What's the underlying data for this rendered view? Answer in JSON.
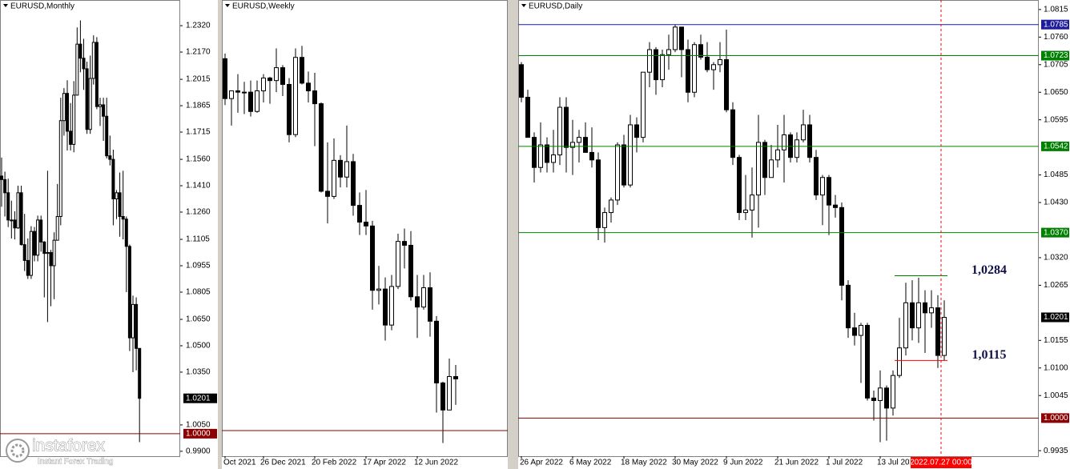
{
  "chart_data": [
    {
      "type": "candlestick",
      "title": "EURUSD,Monthly",
      "categories": [
        null,
        null,
        null,
        null,
        null,
        null,
        null,
        null,
        null,
        null,
        null,
        null,
        null,
        null,
        null,
        null,
        null,
        null,
        null,
        null,
        null,
        null,
        null,
        null,
        null,
        null,
        null,
        null,
        null,
        null,
        null,
        null,
        null,
        null,
        null,
        null,
        null,
        null,
        null,
        null,
        null,
        null,
        null
      ],
      "open": [
        1.1465,
        1.1445,
        1.137,
        1.1215,
        1.1215,
        1.117,
        1.137,
        1.1075,
        1.0985,
        1.09,
        1.115,
        1.1015,
        1.1215,
        1.109,
        1.1025,
        1.103,
        1.0955,
        1.11,
        1.1235,
        1.178,
        1.1935,
        1.172,
        1.1645,
        1.1925,
        1.2215,
        1.2135,
        1.2075,
        1.173,
        1.202,
        1.2225,
        1.186,
        1.187,
        1.1805,
        1.158,
        1.156,
        1.1335,
        1.137,
        1.1235,
        1.122,
        1.1065,
        1.0545,
        1.0735,
        1.0485
      ],
      "high": [
        1.157,
        1.149,
        1.145,
        1.1325,
        1.1265,
        1.141,
        1.141,
        1.125,
        1.111,
        1.118,
        1.1175,
        1.124,
        1.124,
        1.1095,
        1.1495,
        1.1045,
        1.1145,
        1.142,
        1.191,
        1.1965,
        1.201,
        1.188,
        1.2005,
        1.231,
        1.235,
        1.2245,
        1.2115,
        1.215,
        1.2265,
        1.2255,
        1.191,
        1.191,
        1.191,
        1.1695,
        1.1615,
        1.1385,
        1.1485,
        1.1495,
        1.1235,
        1.1075,
        1.0785,
        1.0775,
        1.0485
      ],
      "low": [
        1.129,
        1.1235,
        1.1175,
        1.111,
        1.1105,
        1.1165,
        1.107,
        1.0925,
        1.088,
        1.088,
        1.098,
        1.098,
        1.1035,
        1.0775,
        1.0635,
        1.0725,
        1.0765,
        1.11,
        1.1185,
        1.1695,
        1.161,
        1.161,
        1.16,
        1.1925,
        1.2055,
        1.1955,
        1.1705,
        1.1705,
        1.1985,
        1.1845,
        1.175,
        1.1665,
        1.1565,
        1.1525,
        1.1185,
        1.122,
        1.112,
        1.1105,
        1.0805,
        1.047,
        1.035,
        1.036,
        0.9952
      ],
      "close": [
        1.1445,
        1.137,
        1.1215,
        1.1215,
        1.117,
        1.137,
        1.1075,
        1.0985,
        1.09,
        1.115,
        1.1015,
        1.1215,
        1.109,
        1.1025,
        1.103,
        1.0955,
        1.11,
        1.1235,
        1.178,
        1.1935,
        1.172,
        1.1645,
        1.1925,
        1.2215,
        1.2135,
        1.2075,
        1.173,
        1.202,
        1.2225,
        1.186,
        1.187,
        1.1805,
        1.158,
        1.156,
        1.1335,
        1.137,
        1.1235,
        1.122,
        1.1065,
        1.0545,
        1.0735,
        1.0485,
        1.0201
      ],
      "ylim": [
        0.9872,
        1.2466
      ],
      "yticks": [
        {
          "value": 1.232,
          "label": "1.2320"
        },
        {
          "value": 1.217,
          "label": "1.2170"
        },
        1.2015,
        1.1865,
        1.1715,
        {
          "value": 1.156,
          "label": "1.1560"
        },
        {
          "value": 1.141,
          "label": "1.1410"
        },
        {
          "value": 1.126,
          "label": "1.1260"
        },
        1.1105,
        1.0955,
        1.0805,
        {
          "value": 1.065,
          "label": "1.0650"
        },
        {
          "value": 1.05,
          "label": "1.0500"
        },
        {
          "value": 1.035,
          "label": "1.0350"
        },
        {
          "value": 1.005,
          "label": "1.0050"
        },
        {
          "value": 0.99,
          "label": "0.9900"
        }
      ],
      "levels": [
        {
          "value": 1.0201,
          "color": "#000000",
          "line": false
        },
        {
          "value": 1.0,
          "label": "1.0000",
          "color": "#8b0000"
        }
      ]
    },
    {
      "type": "candlestick",
      "title": "EURUSD,Weekly",
      "categories": [
        "Oct 2021",
        null,
        null,
        null,
        null,
        null,
        "26 Dec 2021",
        null,
        null,
        null,
        null,
        null,
        null,
        null,
        "20 Feb 2022",
        null,
        null,
        null,
        null,
        null,
        null,
        null,
        "17 Apr 2022",
        null,
        null,
        null,
        null,
        null,
        null,
        null,
        "12 Jun 2022",
        null,
        null,
        null,
        null,
        null,
        null
      ],
      "open": [
        1.1445,
        1.129,
        1.132,
        1.1315,
        1.1315,
        1.124,
        1.132,
        1.137,
        1.136,
        1.141,
        1.1345,
        1.115,
        1.145,
        1.135,
        1.132,
        1.127,
        1.093,
        1.091,
        1.105,
        1.0985,
        1.1045,
        1.0875,
        1.081,
        1.0795,
        1.0545,
        1.055,
        1.041,
        1.056,
        1.0735,
        1.072,
        1.052,
        1.048,
        1.0555,
        1.0425,
        1.0185,
        1.008,
        1.021
      ],
      "high": [
        1.1465,
        1.132,
        1.1385,
        1.1355,
        1.136,
        1.136,
        1.1385,
        1.1375,
        1.1485,
        1.142,
        1.137,
        1.1485,
        1.1495,
        1.1395,
        1.139,
        1.1275,
        1.112,
        1.1135,
        1.107,
        1.1185,
        1.1075,
        1.0925,
        1.0935,
        1.0815,
        1.064,
        1.0595,
        1.0605,
        1.0765,
        1.0785,
        1.0775,
        1.0605,
        1.0605,
        1.0615,
        1.0445,
        1.019,
        1.028,
        1.0255
      ],
      "low": [
        1.1265,
        1.1185,
        1.1235,
        1.123,
        1.122,
        1.1235,
        1.1275,
        1.127,
        1.1315,
        1.13,
        1.112,
        1.114,
        1.1345,
        1.1275,
        1.1105,
        1.0925,
        1.0805,
        1.09,
        1.0945,
        1.0945,
        1.0835,
        1.076,
        1.076,
        1.047,
        1.049,
        1.035,
        1.039,
        1.055,
        1.063,
        1.0505,
        1.036,
        1.047,
        1.0365,
        1.007,
        0.9952,
        1.008,
        1.01
      ],
      "close": [
        1.129,
        1.132,
        1.1315,
        1.1315,
        1.124,
        1.132,
        1.137,
        1.136,
        1.141,
        1.1345,
        1.115,
        1.145,
        1.135,
        1.132,
        1.127,
        1.093,
        1.091,
        1.105,
        1.0985,
        1.1045,
        1.0875,
        1.081,
        1.0795,
        1.0545,
        1.055,
        1.041,
        1.056,
        1.0735,
        1.072,
        1.052,
        1.048,
        1.0555,
        1.0425,
        1.0185,
        1.008,
        1.021,
        1.0201
      ],
      "ylim": [
        0.99005,
        1.1673
      ],
      "levels": [
        {
          "value": 1.0,
          "color": "#8b0000",
          "box": false
        }
      ]
    },
    {
      "type": "candlestick",
      "title": "EURUSD,Daily",
      "categories": [
        "26 Apr 2022",
        null,
        null,
        null,
        null,
        null,
        null,
        null,
        "6 May 2022",
        null,
        null,
        null,
        null,
        null,
        null,
        null,
        "18 May 2022",
        null,
        null,
        null,
        null,
        null,
        null,
        null,
        "30 May 2022",
        null,
        null,
        null,
        null,
        null,
        null,
        null,
        "9 Jun 2022",
        null,
        null,
        null,
        null,
        null,
        null,
        null,
        "21 Jun 2022",
        null,
        null,
        null,
        null,
        null,
        null,
        null,
        "1 Jul 2022",
        null,
        null,
        null,
        null,
        null,
        null,
        null,
        "13 Jul 2022",
        null,
        null,
        null,
        null,
        null,
        null,
        null,
        null,
        null,
        null
      ],
      "open": [
        1.0705,
        1.064,
        1.056,
        1.05,
        1.0545,
        1.051,
        1.0525,
        1.062,
        1.054,
        1.055,
        1.056,
        1.053,
        1.0515,
        1.038,
        1.041,
        1.0435,
        1.0545,
        1.0465,
        1.0585,
        1.056,
        1.069,
        1.0735,
        1.0675,
        1.0725,
        1.0735,
        1.078,
        1.0735,
        1.065,
        1.0745,
        1.072,
        1.0695,
        1.0705,
        1.0715,
        1.0615,
        1.052,
        1.041,
        1.0415,
        1.0445,
        1.055,
        1.048,
        1.0515,
        1.0535,
        1.0565,
        1.052,
        1.0555,
        1.0585,
        1.052,
        1.0445,
        1.048,
        1.0425,
        1.042,
        1.0265,
        1.018,
        1.0165,
        1.0185,
        1.004,
        1.0035,
        1.006,
        1.002,
        1.0085,
        1.014,
        1.023,
        1.018,
        1.023,
        1.021,
        1.022,
        1.0125
      ],
      "high": [
        1.071,
        1.0655,
        1.057,
        1.059,
        1.056,
        1.0575,
        1.064,
        1.064,
        1.0595,
        1.0575,
        1.059,
        1.058,
        1.053,
        1.042,
        1.044,
        1.055,
        1.0565,
        1.0605,
        1.06,
        1.069,
        1.075,
        1.074,
        1.0735,
        1.0765,
        1.0785,
        1.078,
        1.0755,
        1.075,
        1.0765,
        1.075,
        1.071,
        1.075,
        1.0775,
        1.063,
        1.0525,
        1.0485,
        1.05,
        1.0605,
        1.0555,
        1.0545,
        1.0585,
        1.0605,
        1.057,
        1.057,
        1.0615,
        1.0605,
        1.0535,
        1.0485,
        1.0485,
        1.0445,
        1.043,
        1.0275,
        1.021,
        1.019,
        1.019,
        1.0055,
        1.0095,
        1.0065,
        1.0095,
        1.02,
        1.027,
        1.0275,
        1.028,
        1.0255,
        1.0255,
        1.0245,
        1.0235
      ],
      "low": [
        1.063,
        1.056,
        1.047,
        1.049,
        1.049,
        1.049,
        1.0505,
        1.049,
        1.0485,
        1.051,
        1.053,
        1.05,
        1.0355,
        1.035,
        1.039,
        1.0425,
        1.046,
        1.046,
        1.053,
        1.055,
        1.066,
        1.0645,
        1.066,
        1.0695,
        1.073,
        1.068,
        1.063,
        1.064,
        1.0715,
        1.069,
        1.0655,
        1.069,
        1.061,
        1.0505,
        1.0395,
        1.0395,
        1.036,
        1.038,
        1.0445,
        1.048,
        1.05,
        1.047,
        1.051,
        1.051,
        1.055,
        1.051,
        1.0435,
        1.0385,
        1.0365,
        1.04,
        1.0235,
        1.016,
        1.0145,
        1.007,
        1.0035,
        0.9995,
        0.9952,
        0.9955,
        1.0005,
        1.008,
        1.0125,
        1.0155,
        1.015,
        1.013,
        1.018,
        1.01,
        1.0115
      ],
      "close": [
        1.064,
        1.056,
        1.05,
        1.0545,
        1.051,
        1.0525,
        1.062,
        1.054,
        1.055,
        1.056,
        1.053,
        1.0515,
        1.038,
        1.041,
        1.0435,
        1.0545,
        1.0465,
        1.0585,
        1.056,
        1.069,
        1.0735,
        1.0675,
        1.0725,
        1.0735,
        1.078,
        1.0735,
        1.065,
        1.0745,
        1.072,
        1.0695,
        1.0705,
        1.0715,
        1.0615,
        1.052,
        1.041,
        1.0415,
        1.0445,
        1.055,
        1.048,
        1.0515,
        1.0535,
        1.0565,
        1.052,
        1.0555,
        1.0585,
        1.052,
        1.0445,
        1.048,
        1.0425,
        1.042,
        1.0265,
        1.018,
        1.0165,
        1.0185,
        1.004,
        1.0035,
        1.006,
        1.002,
        1.0085,
        1.014,
        1.023,
        1.018,
        1.023,
        1.021,
        1.022,
        1.0125,
        1.0201
      ],
      "ylim": [
        0.9924,
        1.0834
      ],
      "yticks": [
        1.0815,
        {
          "value": 1.076,
          "label": "1.0760"
        },
        1.0705,
        {
          "value": 1.065,
          "label": "1.0650"
        },
        1.0595,
        1.0485,
        {
          "value": 1.043,
          "label": "1.0430"
        },
        {
          "value": 1.032,
          "label": "1.0320"
        },
        1.0265,
        1.0155,
        {
          "value": 1.01,
          "label": "1.0100"
        },
        1.0045,
        0.9935
      ],
      "levels": [
        {
          "value": 1.0785,
          "color": "#1c1c9c"
        },
        {
          "value": 1.0723,
          "color": "#008000"
        },
        {
          "value": 1.0542,
          "color": "#008000"
        },
        {
          "value": 1.037,
          "label": "1.0370",
          "color": "#008000"
        },
        {
          "value": 1.0201,
          "color": "#000000",
          "line": false
        },
        {
          "value": 1.0,
          "label": "1.0000",
          "color": "#8b0000"
        }
      ],
      "annotations": [
        {
          "text": "1,0284",
          "value": 1.0284,
          "color": "#008000"
        },
        {
          "text": "1,0115",
          "value": 1.0115,
          "color": "#ff0000"
        }
      ],
      "cursor_label": "2022.07.27 00:00"
    }
  ],
  "logo": {
    "name": "instaforex",
    "tagline": "Instant Forex Trading"
  }
}
